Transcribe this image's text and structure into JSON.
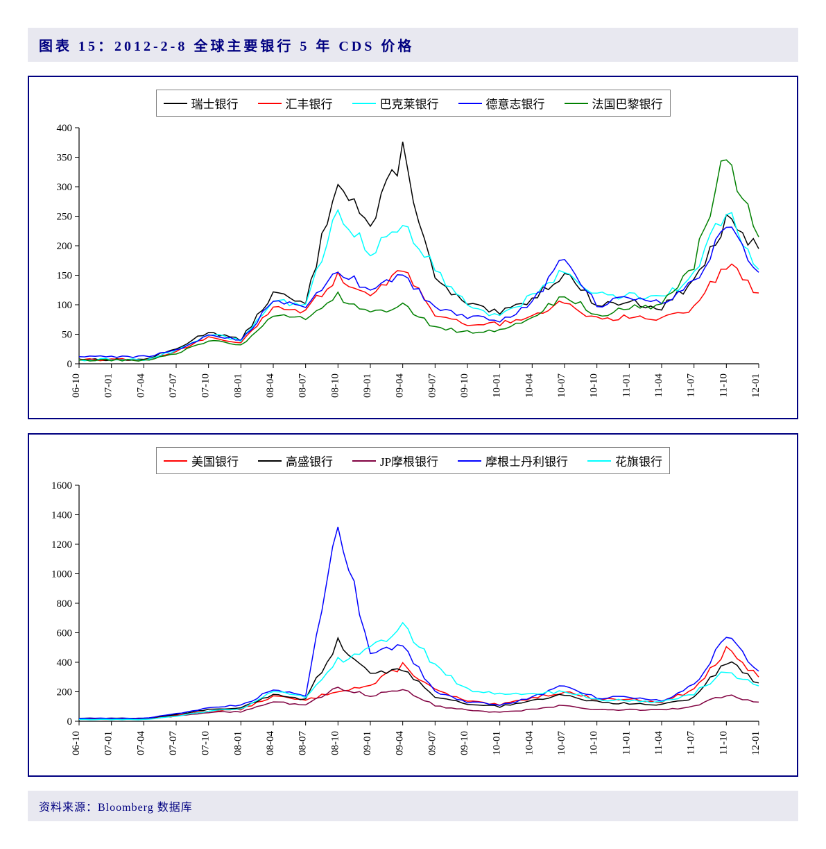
{
  "title": "图表 15：2012-2-8 全球主要银行 5 年 CDS 价格",
  "source": "资料来源：Bloomberg 数据库",
  "x_labels": [
    "06-10",
    "07-01",
    "07-04",
    "07-07",
    "07-10",
    "08-01",
    "08-04",
    "08-07",
    "08-10",
    "09-01",
    "09-04",
    "09-07",
    "09-10",
    "10-01",
    "10-04",
    "10-07",
    "10-10",
    "11-01",
    "11-04",
    "11-07",
    "11-10",
    "12-01"
  ],
  "chart1": {
    "type": "line",
    "ylim": [
      0,
      400
    ],
    "yticks": [
      0,
      50,
      100,
      150,
      200,
      250,
      300,
      350,
      400
    ],
    "background_color": "#ffffff",
    "border_color": "#000080",
    "axis_color": "#000000",
    "line_width": 1.5,
    "label_fontsize": 15,
    "series": [
      {
        "name": "瑞士银行",
        "color": "#000000",
        "values": [
          8,
          7,
          7,
          25,
          55,
          40,
          120,
          100,
          320,
          230,
          360,
          140,
          100,
          85,
          110,
          155,
          100,
          105,
          95,
          140,
          240,
          195
        ]
      },
      {
        "name": "汇丰银行",
        "color": "#ff0000",
        "values": [
          7,
          7,
          7,
          20,
          45,
          35,
          95,
          90,
          150,
          110,
          165,
          85,
          68,
          68,
          80,
          105,
          75,
          80,
          78,
          95,
          170,
          120
        ]
      },
      {
        "name": "巴克莱银行",
        "color": "#00ffff",
        "values": [
          7,
          7,
          7,
          22,
          50,
          40,
          105,
          100,
          260,
          190,
          240,
          160,
          98,
          80,
          115,
          160,
          118,
          115,
          110,
          150,
          265,
          160
        ]
      },
      {
        "name": "德意志银行",
        "color": "#0000ff",
        "values": [
          12,
          12,
          12,
          22,
          48,
          40,
          105,
          95,
          160,
          125,
          150,
          95,
          80,
          72,
          102,
          185,
          100,
          110,
          105,
          135,
          240,
          155
        ]
      },
      {
        "name": "法国巴黎银行",
        "color": "#008000",
        "values": [
          6,
          6,
          6,
          18,
          40,
          30,
          80,
          75,
          115,
          85,
          100,
          60,
          55,
          55,
          75,
          120,
          80,
          95,
          100,
          170,
          355,
          215
        ]
      }
    ]
  },
  "chart2": {
    "type": "line",
    "ylim": [
      0,
      1600
    ],
    "yticks": [
      0,
      200,
      400,
      600,
      800,
      1000,
      1200,
      1400,
      1600
    ],
    "background_color": "#ffffff",
    "border_color": "#000080",
    "axis_color": "#000000",
    "line_width": 1.5,
    "label_fontsize": 15,
    "series": [
      {
        "name": "美国银行",
        "color": "#ff0000",
        "values": [
          15,
          14,
          14,
          40,
          70,
          80,
          170,
          140,
          210,
          240,
          380,
          210,
          135,
          110,
          160,
          200,
          150,
          150,
          130,
          215,
          480,
          300
        ]
      },
      {
        "name": "高盛银行",
        "color": "#000000",
        "values": [
          20,
          20,
          20,
          45,
          80,
          90,
          180,
          150,
          545,
          310,
          360,
          170,
          120,
          100,
          140,
          180,
          130,
          120,
          115,
          160,
          410,
          260
        ]
      },
      {
        "name": "JP摩根银行",
        "color": "#800040",
        "values": [
          15,
          14,
          14,
          35,
          60,
          65,
          130,
          110,
          230,
          175,
          220,
          105,
          75,
          60,
          80,
          110,
          78,
          78,
          75,
          100,
          180,
          130
        ]
      },
      {
        "name": "摩根士丹利银行",
        "color": "#0000ff",
        "values": [
          20,
          20,
          20,
          50,
          90,
          110,
          210,
          170,
          1360,
          460,
          510,
          200,
          130,
          110,
          160,
          250,
          160,
          160,
          140,
          240,
          590,
          340
        ]
      },
      {
        "name": "花旗银行",
        "color": "#00ffff",
        "values": [
          12,
          12,
          12,
          35,
          70,
          80,
          200,
          160,
          410,
          490,
          650,
          370,
          220,
          180,
          180,
          210,
          145,
          140,
          130,
          190,
          340,
          240
        ]
      }
    ]
  }
}
